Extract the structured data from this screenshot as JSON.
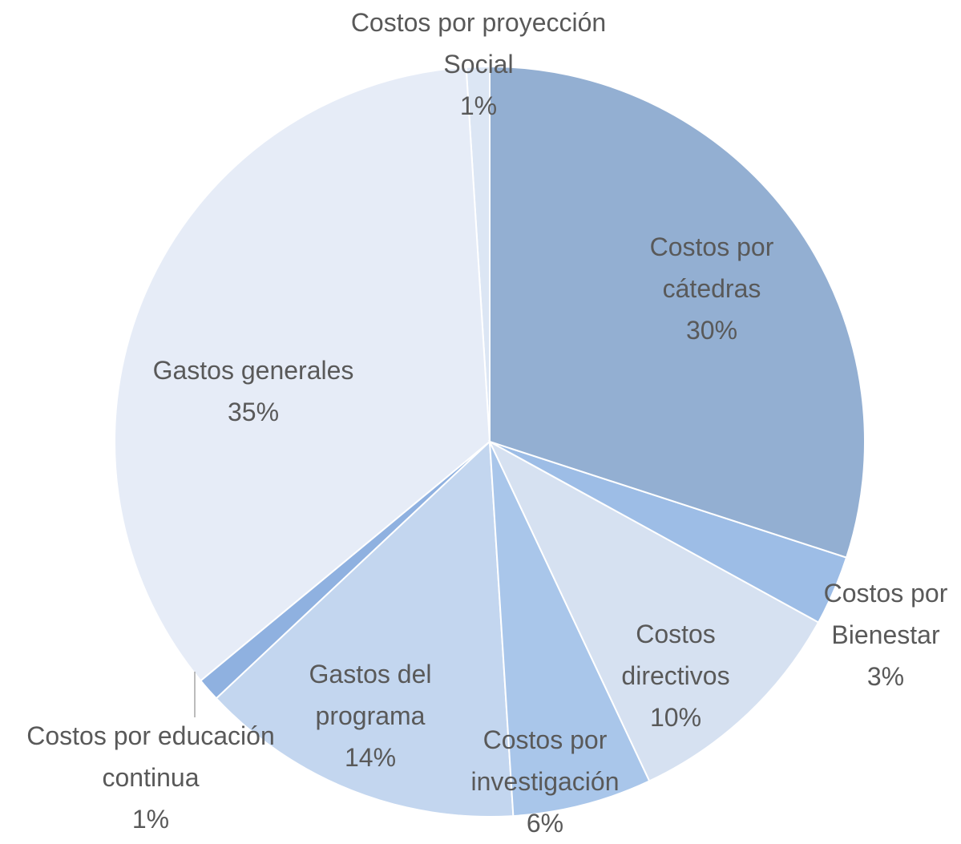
{
  "chart_data": {
    "type": "pie",
    "categories": [
      "Costos por cátedras",
      "Costos por Bienestar",
      "Costos directivos",
      "Costos por investigación",
      "Gastos del programa",
      "Costos por educación continua",
      "Gastos generales",
      "Costos por proyección Social"
    ],
    "values": [
      30,
      3,
      10,
      6,
      14,
      1,
      35,
      1
    ],
    "value_labels": [
      "30%",
      "3%",
      "10%",
      "6%",
      "14%",
      "1%",
      "35%",
      "1%"
    ],
    "colors": [
      "#93afd2",
      "#9dbde6",
      "#d6e1f1",
      "#a9c6ea",
      "#c3d6ef",
      "#8fb1e0",
      "#e6ecf7",
      "#dce6f4"
    ]
  }
}
